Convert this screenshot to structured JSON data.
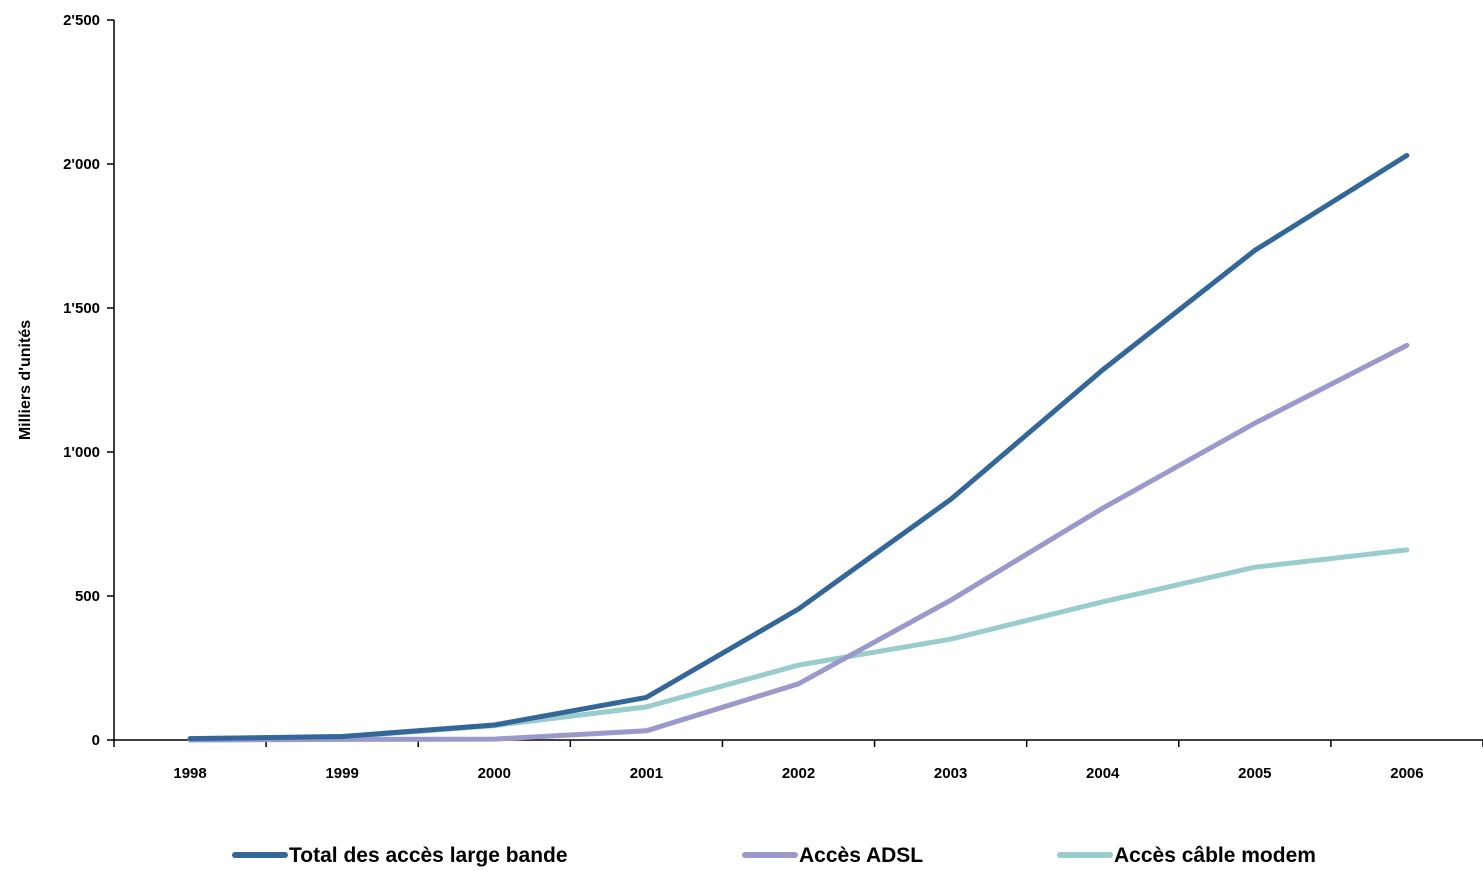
{
  "chart_data": {
    "type": "line",
    "title": "",
    "xlabel": "",
    "ylabel": "Milliers d'unités",
    "categories": [
      "1998",
      "1999",
      "2000",
      "2001",
      "2002",
      "2003",
      "2004",
      "2005",
      "2006"
    ],
    "ylim": [
      0,
      2500
    ],
    "yticks": [
      0,
      500,
      1000,
      1500,
      2000,
      2500
    ],
    "ytick_labels": [
      "0",
      "500",
      "1'000",
      "1'500",
      "2'000",
      "2'500"
    ],
    "grid": false,
    "legend_position": "bottom",
    "series": [
      {
        "name": "Total des accès large bande",
        "color": "#336699",
        "values": [
          5,
          12,
          52,
          148,
          455,
          835,
          1285,
          1700,
          2030
        ]
      },
      {
        "name": "Accès ADSL",
        "color": "#9999CC",
        "values": [
          0,
          2,
          3,
          32,
          195,
          485,
          805,
          1100,
          1370
        ]
      },
      {
        "name": "Accès câble modem",
        "color": "#99CCCC",
        "values": [
          5,
          10,
          50,
          115,
          260,
          350,
          480,
          600,
          660
        ]
      }
    ]
  }
}
